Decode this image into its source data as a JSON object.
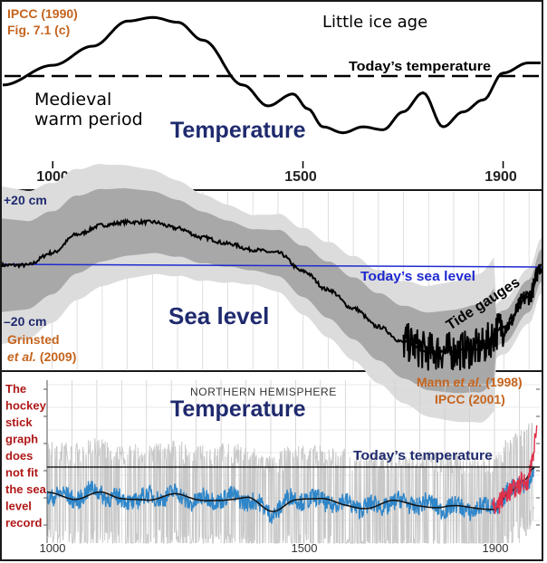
{
  "colors": {
    "frame": "#1a1a1a",
    "orange_label": "#c5641e",
    "navy_title": "#1f2a6e",
    "blue_line": "#1f2ad0",
    "red_text": "#b01818",
    "band_outer": "#dcdcdc",
    "band_inner": "#a8a8a8",
    "proxy_blue": "#2f86c9",
    "instrument_red": "#e0304a",
    "noise_gray": "#c8c8c8"
  },
  "chart_data": [
    {
      "type": "line",
      "panel": "top",
      "title": "Temperature",
      "source": [
        "IPCC (1990)",
        "Fig. 7.1 (c)"
      ],
      "xticks": [
        "1000",
        "1500",
        "1900"
      ],
      "xlim": [
        900,
        1975
      ],
      "ylim": [
        -1,
        1
      ],
      "grid": false,
      "annotations": {
        "little_ice_age": "Little ice age",
        "medieval_line1": "Medieval",
        "medieval_line2": "warm period",
        "reference": "Today’s temperature"
      },
      "reference_y": 0,
      "series": [
        {
          "x": [
            900,
            1000,
            1080,
            1150,
            1200,
            1250,
            1300,
            1380,
            1430,
            1480,
            1510,
            1540,
            1580,
            1620,
            1660,
            1700,
            1740,
            1780,
            1820,
            1860,
            1900,
            1950,
            1975
          ],
          "values": [
            -0.15,
            0.18,
            0.5,
            0.92,
            0.98,
            0.9,
            0.6,
            -0.15,
            -0.5,
            -0.3,
            -0.55,
            -0.85,
            -0.95,
            -0.85,
            -0.9,
            -0.6,
            -0.28,
            -0.85,
            -0.6,
            -0.4,
            0.05,
            0.22,
            0.22
          ]
        }
      ]
    },
    {
      "type": "area",
      "panel": "middle",
      "title": "Sea level",
      "source": [
        "Grinsted",
        "et al.",
        "(2009)"
      ],
      "ylabels": [
        "+20 cm",
        "–20 cm"
      ],
      "xlim": [
        900,
        1975
      ],
      "ylim": [
        -30,
        25
      ],
      "reference": "Today’s sea level",
      "reference_y": 0,
      "gauges_label": "Tide gauges",
      "grid": false,
      "series": [
        {
          "x": [
            900,
            950,
            1000,
            1050,
            1100,
            1150,
            1200,
            1250,
            1300,
            1350,
            1400,
            1450,
            1500,
            1550,
            1600,
            1650,
            1700,
            1750,
            1800,
            1850,
            1900,
            1950,
            1975
          ],
          "values": [
            0,
            0,
            4,
            10,
            13,
            14,
            14,
            12,
            9,
            7,
            5,
            4,
            -2,
            -8,
            -14,
            -20,
            -25,
            -28,
            -28,
            -27,
            -20,
            -10,
            0
          ]
        }
      ]
    },
    {
      "type": "line",
      "panel": "bottom",
      "title": "Temperature",
      "subtitle": "NORTHERN HEMISPHERE",
      "source": [
        "Mann et al. (1998)",
        "IPCC (2001)"
      ],
      "xticks": [
        "1000",
        "1500",
        "1900"
      ],
      "xlim": [
        975,
        1985
      ],
      "ylim": [
        -1,
        0.8
      ],
      "reference": "Today’s temperature",
      "reference_y": 0.3,
      "side_note": [
        "The",
        "hockey",
        "stick",
        "graph",
        "does",
        "not fit",
        "the sea",
        "level",
        "record"
      ],
      "grid": true,
      "series": [
        {
          "x": [
            1000,
            1050,
            1100,
            1150,
            1200,
            1250,
            1300,
            1350,
            1400,
            1450,
            1500,
            1550,
            1600,
            1650,
            1700,
            1750,
            1800,
            1850,
            1900,
            1930,
            1960,
            1980
          ],
          "values": [
            -0.15,
            -0.2,
            -0.1,
            -0.25,
            -0.2,
            -0.15,
            -0.25,
            -0.2,
            -0.22,
            -0.42,
            -0.2,
            -0.25,
            -0.3,
            -0.35,
            -0.28,
            -0.3,
            -0.35,
            -0.38,
            -0.35,
            -0.1,
            0.05,
            0.25
          ]
        }
      ]
    }
  ]
}
